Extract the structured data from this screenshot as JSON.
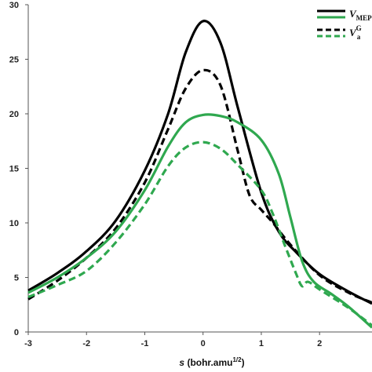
{
  "chart_data": {
    "type": "line",
    "xlabel_italic": "s",
    "xlabel_rest": " (bohr.amu",
    "xlabel_sup": "1/2",
    "xlabel_close": ")",
    "ylabel": "",
    "xlim": [
      -3,
      2.9
    ],
    "ylim": [
      0,
      30
    ],
    "x_ticks": [
      -3,
      -2,
      -1,
      0,
      1,
      2
    ],
    "y_ticks": [
      0,
      5,
      10,
      15,
      20,
      25,
      30
    ],
    "grid": false,
    "legend_placement": "top-right",
    "series": [
      {
        "name": "V_MEP",
        "legend_main": "V",
        "legend_sub": "MEP",
        "legend_sup": "",
        "color": "#000000",
        "dash": "solid",
        "x": [
          -3.0,
          -2.5,
          -2.0,
          -1.5,
          -1.0,
          -0.6,
          -0.3,
          0.0,
          0.3,
          0.6,
          1.0,
          1.3,
          1.6,
          2.0,
          2.5,
          2.9
        ],
        "y": [
          3.8,
          5.4,
          7.4,
          10.2,
          14.8,
          20.0,
          25.6,
          28.5,
          26.5,
          20.5,
          12.8,
          9.2,
          7.3,
          5.3,
          3.7,
          2.6
        ]
      },
      {
        "name": "V_a^G (black dashed)",
        "legend_main": "V",
        "legend_sub": "a",
        "legend_sup": "G",
        "color": "#000000",
        "dash": "dashed",
        "x": [
          -3.0,
          -2.5,
          -2.0,
          -1.5,
          -1.0,
          -0.6,
          -0.3,
          0.0,
          0.3,
          0.6,
          0.8,
          1.0,
          1.2,
          1.5,
          2.0,
          2.5,
          2.9
        ],
        "y": [
          3.0,
          4.7,
          6.8,
          9.5,
          13.7,
          18.6,
          22.3,
          24.0,
          22.6,
          16.5,
          12.5,
          11.2,
          10.0,
          8.0,
          5.2,
          3.6,
          2.7
        ]
      },
      {
        "name": "V_MEP (green)",
        "legend_main": "V",
        "legend_sub": "MEP",
        "legend_sup": "",
        "color": "#2fa84f",
        "dash": "solid",
        "x": [
          -3.0,
          -2.5,
          -2.0,
          -1.5,
          -1.0,
          -0.6,
          -0.3,
          0.0,
          0.3,
          0.6,
          1.0,
          1.3,
          1.5,
          1.7,
          1.9,
          2.2,
          2.5,
          2.9
        ],
        "y": [
          3.6,
          5.0,
          6.8,
          9.2,
          13.0,
          17.0,
          19.2,
          19.9,
          19.8,
          19.2,
          17.6,
          14.5,
          10.5,
          6.5,
          4.6,
          3.5,
          2.3,
          0.4
        ]
      },
      {
        "name": "V_a^G (green dashed)",
        "legend_main": "V",
        "legend_sub": "a",
        "legend_sup": "G",
        "color": "#2fa84f",
        "dash": "dashed",
        "x": [
          -3.0,
          -2.5,
          -2.0,
          -1.5,
          -1.0,
          -0.6,
          -0.3,
          0.0,
          0.3,
          0.6,
          1.0,
          1.2,
          1.4,
          1.6,
          1.7,
          1.8,
          2.0,
          2.5,
          2.9
        ],
        "y": [
          3.2,
          4.3,
          5.6,
          8.2,
          11.7,
          15.2,
          16.9,
          17.4,
          16.8,
          15.3,
          13.0,
          10.8,
          8.0,
          5.3,
          4.2,
          4.6,
          3.9,
          2.2,
          0.6
        ]
      }
    ]
  }
}
